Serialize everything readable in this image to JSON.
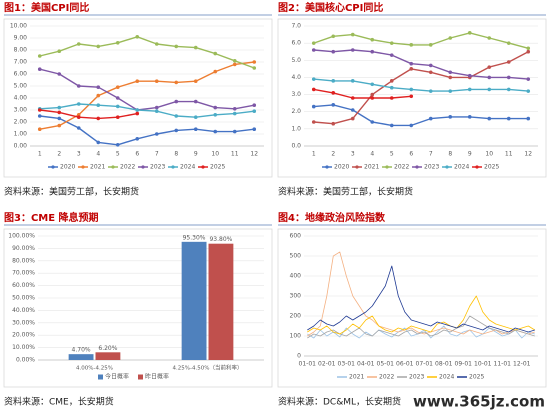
{
  "chart_data": [
    {
      "type": "line",
      "title": "图1：美国CPI同比",
      "source": "资料来源：美国劳工部，长安期货",
      "markers": true,
      "categories": [
        "1",
        "2",
        "3",
        "4",
        "5",
        "6",
        "7",
        "8",
        "9",
        "10",
        "11",
        "12"
      ],
      "ylim": [
        0,
        10
      ],
      "yticks": [
        {
          "value": 0,
          "label": "0.00"
        },
        {
          "value": 1,
          "label": "1.00"
        },
        {
          "value": 2,
          "label": "2.00"
        },
        {
          "value": 3,
          "label": "3.00"
        },
        {
          "value": 4,
          "label": "4.00"
        },
        {
          "value": 5,
          "label": "5.00"
        },
        {
          "value": 6,
          "label": "6.00"
        },
        {
          "value": 7,
          "label": "7.00"
        },
        {
          "value": 8,
          "label": "8.00"
        },
        {
          "value": 9,
          "label": "9.00"
        },
        {
          "value": 10,
          "label": "10.00"
        }
      ],
      "series": [
        {
          "name": "2020",
          "color": "#4472c4",
          "values": [
            2.5,
            2.3,
            1.5,
            0.3,
            0.1,
            0.6,
            1.0,
            1.3,
            1.4,
            1.2,
            1.2,
            1.4
          ]
        },
        {
          "name": "2021",
          "color": "#ed7d31",
          "values": [
            1.4,
            1.7,
            2.6,
            4.2,
            4.9,
            5.4,
            5.4,
            5.3,
            5.4,
            6.2,
            6.8,
            7.0
          ]
        },
        {
          "name": "2022",
          "color": "#9bbb59",
          "values": [
            7.5,
            7.9,
            8.5,
            8.3,
            8.6,
            9.1,
            8.5,
            8.3,
            8.2,
            7.7,
            7.1,
            6.5
          ]
        },
        {
          "name": "2023",
          "color": "#7e57a6",
          "values": [
            6.4,
            6.0,
            5.0,
            4.9,
            4.0,
            3.0,
            3.2,
            3.7,
            3.7,
            3.2,
            3.1,
            3.4
          ]
        },
        {
          "name": "2024",
          "color": "#4bacc6",
          "values": [
            3.1,
            3.2,
            3.5,
            3.4,
            3.3,
            3.0,
            2.9,
            2.5,
            2.4,
            2.6,
            2.7,
            2.9
          ]
        },
        {
          "name": "2025",
          "color": "#e02020",
          "values": [
            3.0,
            2.8,
            2.4,
            2.3,
            2.4,
            2.7,
            null,
            null,
            null,
            null,
            null,
            null
          ]
        }
      ]
    },
    {
      "type": "line",
      "title": "图2：美国核心CPI同比",
      "source": "资料来源：美国劳工部，长安期货",
      "markers": true,
      "categories": [
        "1",
        "2",
        "3",
        "4",
        "5",
        "6",
        "7",
        "8",
        "9",
        "10",
        "11",
        "12"
      ],
      "ylim": [
        0,
        7
      ],
      "yticks": [
        {
          "value": 0,
          "label": "0.0"
        },
        {
          "value": 1,
          "label": "1.0"
        },
        {
          "value": 2,
          "label": "2.0"
        },
        {
          "value": 3,
          "label": "3.0"
        },
        {
          "value": 4,
          "label": "4.0"
        },
        {
          "value": 5,
          "label": "5.0"
        },
        {
          "value": 6,
          "label": "6.0"
        },
        {
          "value": 7,
          "label": "7.0"
        }
      ],
      "series": [
        {
          "name": "2020",
          "color": "#4472c4",
          "values": [
            2.3,
            2.4,
            2.1,
            1.4,
            1.2,
            1.2,
            1.6,
            1.7,
            1.7,
            1.6,
            1.6,
            1.6
          ]
        },
        {
          "name": "2021",
          "color": "#c0504d",
          "values": [
            1.4,
            1.3,
            1.6,
            3.0,
            3.8,
            4.5,
            4.3,
            4.0,
            4.0,
            4.6,
            4.9,
            5.5
          ]
        },
        {
          "name": "2022",
          "color": "#9bbb59",
          "values": [
            6.0,
            6.4,
            6.5,
            6.2,
            6.0,
            5.9,
            5.9,
            6.3,
            6.6,
            6.3,
            6.0,
            5.7
          ]
        },
        {
          "name": "2023",
          "color": "#7e57a6",
          "values": [
            5.6,
            5.5,
            5.6,
            5.5,
            5.3,
            4.8,
            4.7,
            4.3,
            4.1,
            4.0,
            4.0,
            3.9
          ]
        },
        {
          "name": "2024",
          "color": "#4bacc6",
          "values": [
            3.9,
            3.8,
            3.8,
            3.6,
            3.4,
            3.3,
            3.2,
            3.2,
            3.3,
            3.3,
            3.3,
            3.2
          ]
        },
        {
          "name": "2025",
          "color": "#e02020",
          "values": [
            3.3,
            3.1,
            2.8,
            2.8,
            2.8,
            2.9,
            null,
            null,
            null,
            null,
            null,
            null
          ]
        }
      ]
    },
    {
      "type": "bar",
      "title": "图3：CME 降息预期",
      "source": "资料来源：CME，长安期货",
      "categories": [
        "4.00%-4.25%",
        "4.25%-4.50%（当前利率）"
      ],
      "ylim": [
        0,
        100
      ],
      "yticks": [
        {
          "value": 0,
          "label": "0.00%"
        },
        {
          "value": 10,
          "label": "10.00%"
        },
        {
          "value": 20,
          "label": "20.00%"
        },
        {
          "value": 30,
          "label": "30.00%"
        },
        {
          "value": 40,
          "label": "40.00%"
        },
        {
          "value": 50,
          "label": "50.00%"
        },
        {
          "value": 60,
          "label": "60.00%"
        },
        {
          "value": 70,
          "label": "70.00%"
        },
        {
          "value": 80,
          "label": "80.00%"
        },
        {
          "value": 90,
          "label": "90.00%"
        },
        {
          "value": 100,
          "label": "100.00%"
        }
      ],
      "series": [
        {
          "name": "今日概率",
          "color": "#4f81bd",
          "values": [
            4.7,
            95.3
          ],
          "value_labels": [
            "4.70%",
            "95.30%"
          ]
        },
        {
          "name": "昨日概率",
          "color": "#c0504d",
          "values": [
            6.2,
            93.8
          ],
          "value_labels": [
            "6.20%",
            "93.80%"
          ]
        }
      ]
    },
    {
      "type": "line",
      "title": "图4：地缘政治风险指数",
      "source": "资料来源：DC&ML，长安期货",
      "markers": false,
      "categories": [
        "01-01",
        null,
        null,
        "02-01",
        null,
        null,
        "03-01",
        null,
        null,
        "04-01",
        null,
        null,
        "05-01",
        null,
        null,
        "06-01",
        null,
        null,
        "07-01",
        null,
        null,
        "08-01",
        null,
        null,
        "09-01",
        null,
        null,
        "10-01",
        null,
        null,
        "11-01",
        null,
        null,
        "12-01",
        null,
        null
      ],
      "ylim": [
        0,
        600
      ],
      "yticks": [
        0,
        100,
        200,
        300,
        400,
        500,
        600
      ],
      "series": [
        {
          "name": "2021",
          "color": "#9dc3e6",
          "values": [
            110,
            90,
            130,
            100,
            120,
            95,
            140,
            110,
            90,
            120,
            100,
            130,
            110,
            95,
            120,
            140,
            100,
            110,
            130,
            90,
            120,
            150,
            110,
            100,
            120,
            130,
            95,
            110,
            140,
            120,
            100,
            110,
            130,
            90,
            120,
            110
          ]
        },
        {
          "name": "2022",
          "color": "#f4b183",
          "values": [
            100,
            120,
            150,
            300,
            500,
            520,
            400,
            300,
            250,
            200,
            180,
            150,
            140,
            130,
            120,
            130,
            140,
            120,
            110,
            120,
            130,
            140,
            130,
            120,
            110,
            130,
            120,
            110,
            120,
            130,
            110,
            120,
            130,
            120,
            110,
            120
          ]
        },
        {
          "name": "2023",
          "color": "#a5a5a5",
          "values": [
            90,
            110,
            100,
            120,
            130,
            110,
            100,
            120,
            140,
            110,
            100,
            130,
            120,
            110,
            100,
            120,
            130,
            110,
            120,
            100,
            110,
            130,
            120,
            140,
            150,
            200,
            180,
            160,
            140,
            130,
            120,
            110,
            130,
            120,
            110,
            100
          ]
        },
        {
          "name": "2024",
          "color": "#ffc000",
          "values": [
            120,
            140,
            130,
            150,
            120,
            110,
            130,
            160,
            140,
            180,
            200,
            150,
            130,
            120,
            140,
            130,
            150,
            140,
            130,
            120,
            160,
            170,
            150,
            140,
            180,
            250,
            300,
            220,
            180,
            160,
            150,
            140,
            130,
            140,
            150,
            130
          ]
        },
        {
          "name": "2025",
          "color": "#1f3a93",
          "values": [
            130,
            150,
            180,
            160,
            150,
            170,
            200,
            180,
            200,
            220,
            250,
            300,
            350,
            450,
            300,
            220,
            180,
            170,
            160,
            150,
            170,
            160,
            150,
            140,
            160,
            150,
            140,
            130,
            150,
            140,
            130,
            120,
            140,
            130,
            120,
            130
          ]
        }
      ]
    }
  ],
  "watermark": "www.365jz.com"
}
